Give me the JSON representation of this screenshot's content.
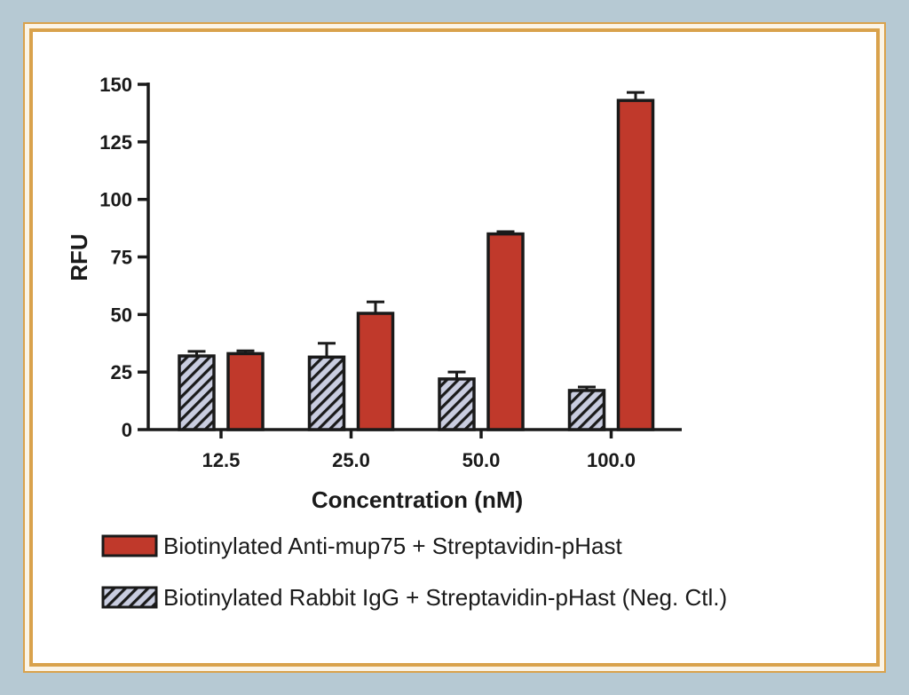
{
  "chart_data": {
    "type": "bar",
    "categories": [
      "12.5",
      "25.0",
      "50.0",
      "100.0"
    ],
    "xlabel": "Concentration (nM)",
    "ylabel": "RFU",
    "ylim": [
      0,
      150
    ],
    "yticks": [
      0,
      25,
      50,
      75,
      100,
      125,
      150
    ],
    "grid": false,
    "legend_position": "bottom",
    "series": [
      {
        "name": "Biotinylated Rabbit IgG + Streptavidin-pHast (Neg. Ctl.)",
        "values": [
          32,
          31.5,
          22,
          17
        ],
        "error": [
          2,
          6,
          3,
          1.5
        ],
        "color": "#c9cde0",
        "pattern": "diagonal-hatch"
      },
      {
        "name": "Biotinylated Anti-mup75 + Streptavidin-pHast",
        "values": [
          33,
          50.5,
          85,
          143
        ],
        "error": [
          1.2,
          5,
          1,
          3.5
        ],
        "color": "#c0392b",
        "pattern": "solid"
      }
    ],
    "legend_order": [
      1,
      0
    ]
  },
  "colors": {
    "background": "#b6c9d3",
    "frame": "#d9a24c",
    "bar_red": "#c0392b",
    "bar_hatch_fill": "#c9cde0",
    "axis": "#1a1a1a"
  }
}
